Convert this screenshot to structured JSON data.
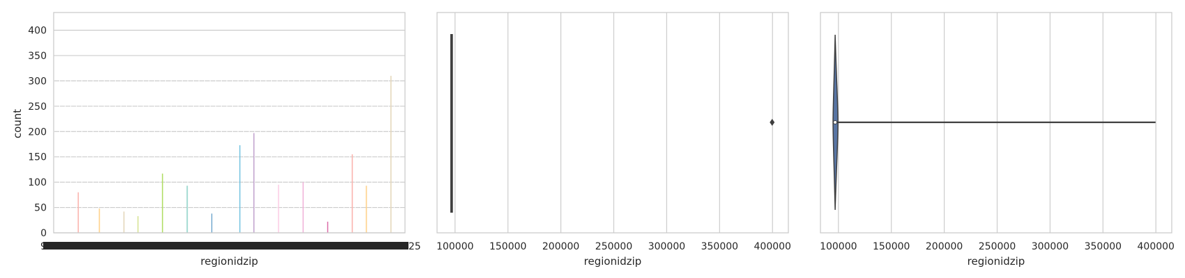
{
  "chart_data": [
    {
      "type": "bar",
      "title": "",
      "xlabel": "regionidzip",
      "ylabel": "count",
      "ylim": [
        0,
        435
      ],
      "yticks": [
        0,
        50,
        100,
        150,
        200,
        250,
        300,
        350,
        400
      ],
      "x_tick_fragment_left": "95",
      "x_tick_fragment_right": "25",
      "grid": "y",
      "bar_colors": [
        "#fbb4ae",
        "#ffd28a",
        "#e5d8bd",
        "#d9e59a",
        "#b3de69",
        "#8dd3c7",
        "#80b1d3",
        "#7ec8e3",
        "#c2a5cf",
        "#fccde5",
        "#f1b6da",
        "#de77ae"
      ],
      "bars": [
        {
          "category_index": 0.07,
          "value": 80
        },
        {
          "category_index": 0.13,
          "value": 48
        },
        {
          "category_index": 0.2,
          "value": 42
        },
        {
          "category_index": 0.24,
          "value": 33
        },
        {
          "category_index": 0.31,
          "value": 117
        },
        {
          "category_index": 0.38,
          "value": 93
        },
        {
          "category_index": 0.45,
          "value": 38
        },
        {
          "category_index": 0.53,
          "value": 173
        },
        {
          "category_index": 0.57,
          "value": 197
        },
        {
          "category_index": 0.64,
          "value": 95
        },
        {
          "category_index": 0.71,
          "value": 100
        },
        {
          "category_index": 0.78,
          "value": 22
        },
        {
          "category_index": 0.85,
          "value": 155
        },
        {
          "category_index": 0.89,
          "value": 93
        },
        {
          "category_index": 0.96,
          "value": 310
        }
      ]
    },
    {
      "type": "box",
      "title": "",
      "xlabel": "regionidzip",
      "xlim": [
        83000,
        415000
      ],
      "xticks": [
        100000,
        150000,
        200000,
        250000,
        300000,
        350000,
        400000
      ],
      "grid": "x",
      "box": {
        "min": 96000,
        "q1": 96200,
        "median": 96900,
        "q3": 97300,
        "max": 97300
      },
      "outliers": [
        399675
      ]
    },
    {
      "type": "violin",
      "title": "",
      "xlabel": "regionidzip",
      "xlim": [
        83000,
        415000
      ],
      "xticks": [
        100000,
        150000,
        200000,
        250000,
        300000,
        350000,
        400000
      ],
      "grid": "x",
      "range": [
        95982,
        399675
      ],
      "median": 96900,
      "fill": "#5875a4"
    }
  ]
}
